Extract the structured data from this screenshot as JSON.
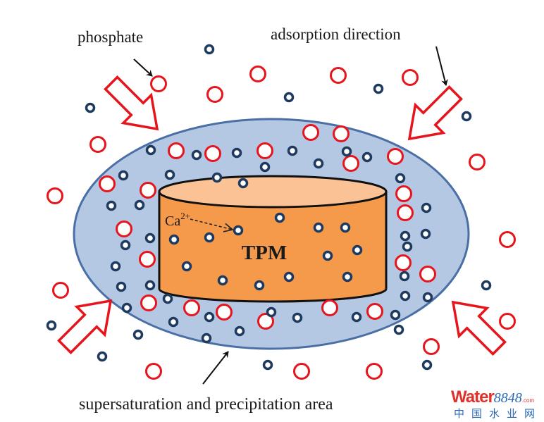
{
  "labels": {
    "phosphate": "phosphate",
    "adsorption": "adsorption direction",
    "area": "supersaturation and precipitation area",
    "tpm": "TPM",
    "ca": "Ca",
    "ca_charge": "2+"
  },
  "watermark": {
    "brand": "Water",
    "number": "8848",
    "domain": ".com",
    "chinese": "中国水业网"
  },
  "colors": {
    "phosphate": "#e8141c",
    "calcium": "#1f3a5f",
    "area_fill": "#b4c8e4",
    "area_stroke": "#4a6fa5",
    "tpm_side": "#f59a4a",
    "tpm_top": "#fac295",
    "arrow": "#e8141c"
  }
}
